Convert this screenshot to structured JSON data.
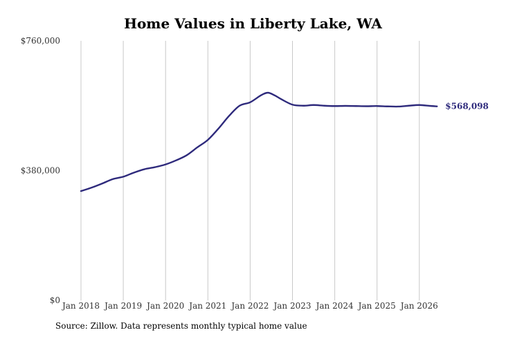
{
  "chart_data": {
    "type": "line",
    "title": "Home Values in Liberty Lake, WA",
    "xlabel": "",
    "ylabel": "",
    "ylim": [
      0,
      760000
    ],
    "y_ticks": [
      {
        "value": 0,
        "label": "$0"
      },
      {
        "value": 380000,
        "label": "$380,000"
      },
      {
        "value": 760000,
        "label": "$760,000"
      }
    ],
    "x_ticks": [
      {
        "value": 2018.0,
        "label": "Jan 2018"
      },
      {
        "value": 2019.0,
        "label": "Jan 2019"
      },
      {
        "value": 2020.0,
        "label": "Jan 2020"
      },
      {
        "value": 2021.0,
        "label": "Jan 2021"
      },
      {
        "value": 2022.0,
        "label": "Jan 2022"
      },
      {
        "value": 2023.0,
        "label": "Jan 2023"
      },
      {
        "value": 2024.0,
        "label": "Jan 2024"
      },
      {
        "value": 2025.0,
        "label": "Jan 2025"
      },
      {
        "value": 2026.0,
        "label": "Jan 2026"
      }
    ],
    "grid": "vertical",
    "line_color": "#2e2a7c",
    "end_label": "$568,098",
    "series": [
      {
        "x": [
          2018.0,
          2018.25,
          2018.5,
          2018.75,
          2019.0,
          2019.25,
          2019.5,
          2019.75,
          2020.0,
          2020.25,
          2020.5,
          2020.75,
          2021.0,
          2021.25,
          2021.5,
          2021.75,
          2022.0,
          2022.25,
          2022.417,
          2022.583,
          2022.75,
          2023.0,
          2023.25,
          2023.5,
          2023.75,
          2024.0,
          2024.25,
          2024.5,
          2024.75,
          2025.0,
          2025.25,
          2025.5,
          2025.75,
          2026.0,
          2026.25,
          2026.417
        ],
        "y": [
          320000,
          330000,
          342000,
          355000,
          362000,
          374000,
          384000,
          390000,
          398000,
          410000,
          425000,
          448000,
          470000,
          503000,
          540000,
          570000,
          580000,
          600000,
          608000,
          600000,
          588000,
          573000,
          570000,
          572000,
          570000,
          569000,
          569500,
          569000,
          568500,
          569000,
          568000,
          567500,
          570000,
          572000,
          569500,
          568098
        ]
      }
    ]
  },
  "source": "Source: Zillow. Data represents monthly typical home value"
}
